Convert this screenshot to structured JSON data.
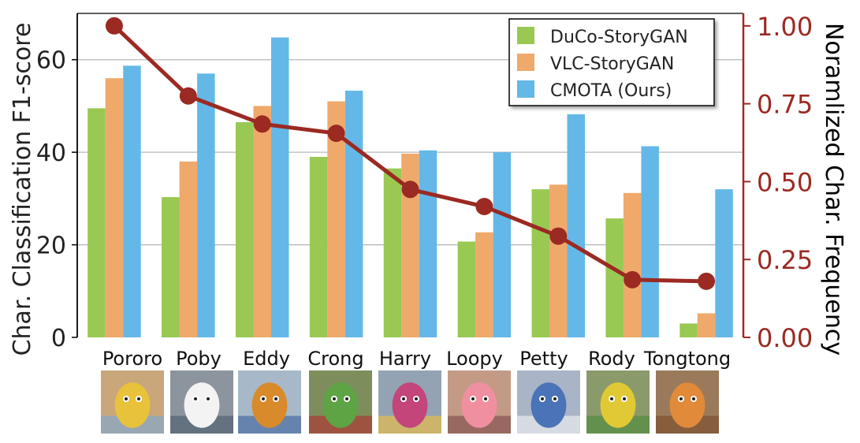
{
  "chart_data": {
    "type": "bar",
    "categories": [
      "Pororo",
      "Poby",
      "Eddy",
      "Crong",
      "Harry",
      "Loopy",
      "Petty",
      "Rody",
      "Tongtong"
    ],
    "series": [
      {
        "name": "DuCo-StoryGAN",
        "color": "#99c853",
        "values": [
          49.5,
          30.3,
          46.5,
          39.0,
          36.5,
          20.7,
          32.0,
          25.7,
          3.0
        ]
      },
      {
        "name": "VLC-StoryGAN",
        "color": "#efa96b",
        "values": [
          56.0,
          38.0,
          50.0,
          51.0,
          39.7,
          22.7,
          33.0,
          31.2,
          5.2
        ]
      },
      {
        "name": "CMOTA (Ours)",
        "color": "#63b8e8",
        "values": [
          58.7,
          57.0,
          64.8,
          53.3,
          40.4,
          40.0,
          48.2,
          41.3,
          32.0
        ]
      }
    ],
    "line_series": {
      "name": "",
      "color": "#9b2a22",
      "values": [
        1.0,
        0.775,
        0.685,
        0.655,
        0.475,
        0.42,
        0.325,
        0.185,
        0.18
      ]
    },
    "ylabel": "Char. Classification F1-score",
    "ylabel_right": "Noramlized Char. Frequency",
    "ylim": [
      0,
      70
    ],
    "ylim_right": [
      0,
      1.04
    ],
    "yticks": [
      "0",
      "20",
      "40",
      "60"
    ],
    "yticks_right": [
      "0.00",
      "0.25",
      "0.50",
      "0.75",
      "1.00"
    ],
    "grid": "horizontal",
    "legend_position": "top-right",
    "character_images": [
      "Pororo",
      "Poby",
      "Eddy",
      "Crong",
      "Harry",
      "Loopy",
      "Petty",
      "Rody",
      "Tongtong"
    ]
  }
}
